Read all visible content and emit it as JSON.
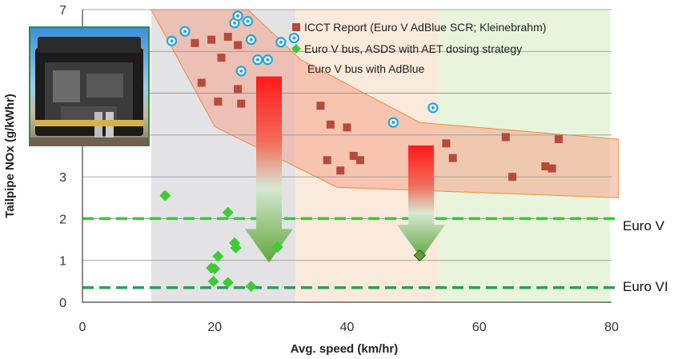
{
  "chart_data": {
    "type": "scatter",
    "xlabel": "Avg. speed (km/hr)",
    "ylabel": "Tailpipe NOx (g/kWhr)",
    "xlim": [
      0,
      80
    ],
    "ylim": [
      0,
      7
    ],
    "x_ticks": [
      "0",
      "20",
      "40",
      "60",
      "80"
    ],
    "y_ticks": [
      "0",
      "1",
      "2",
      "3",
      "",
      "",
      "",
      "7"
    ],
    "grid": "horizontal",
    "legend_position": "top-right",
    "speed_bands": [
      {
        "x0": 10.4,
        "x1": 32.2,
        "color": "#e3e3e6"
      },
      {
        "x0": 32.2,
        "x1": 53.8,
        "color": "#faeadb"
      },
      {
        "x0": 53.8,
        "x1": 79.8,
        "color": "#e8f5dc"
      }
    ],
    "envelope": {
      "color": "#f4a48a",
      "upper": [
        [
          10.4,
          7.0
        ],
        [
          25.0,
          7.0
        ],
        [
          33.0,
          5.8
        ],
        [
          51.0,
          4.3
        ],
        [
          81.0,
          3.9
        ]
      ],
      "lower": [
        [
          81.0,
          2.5
        ],
        [
          38.5,
          2.75
        ],
        [
          20.0,
          4.2
        ]
      ]
    },
    "reference_lines": [
      {
        "label": "Euro V",
        "y": 2.0,
        "color": "#33cc33"
      },
      {
        "label": "Euro VI",
        "y": 0.35,
        "color": "#2e9e5a"
      }
    ],
    "series": [
      {
        "name": "ICCT Report (Euro V AdBlue SCR; Kleinebrahm)",
        "marker": "square",
        "color": "#b84a3c",
        "points": [
          [
            17.0,
            6.2
          ],
          [
            19.5,
            6.28
          ],
          [
            21.0,
            5.85
          ],
          [
            22.0,
            6.35
          ],
          [
            23.5,
            6.15
          ],
          [
            18.0,
            5.25
          ],
          [
            23.5,
            5.1
          ],
          [
            20.5,
            4.8
          ],
          [
            24.0,
            4.75
          ],
          [
            36.0,
            4.7
          ],
          [
            37.5,
            4.25
          ],
          [
            40.0,
            4.18
          ],
          [
            37.0,
            3.4
          ],
          [
            39.0,
            3.15
          ],
          [
            41.0,
            3.5
          ],
          [
            42.0,
            3.4
          ],
          [
            55.0,
            3.8
          ],
          [
            56.0,
            3.45
          ],
          [
            64.0,
            3.95
          ],
          [
            65.0,
            3.0
          ],
          [
            70.0,
            3.25
          ],
          [
            71.0,
            3.2
          ],
          [
            72.0,
            3.9
          ]
        ]
      },
      {
        "name": "Euro V bus, ASDS with AET dosing strategy",
        "marker": "diamond",
        "color": "#3dcc33",
        "points": [
          [
            12.5,
            2.55
          ],
          [
            22.0,
            2.15
          ],
          [
            23.0,
            1.42
          ],
          [
            23.2,
            1.3
          ],
          [
            29.5,
            1.32
          ],
          [
            20.5,
            1.1
          ],
          [
            19.5,
            0.82
          ],
          [
            20.0,
            0.8
          ],
          [
            19.8,
            0.5
          ],
          [
            22.0,
            0.47
          ],
          [
            25.5,
            0.38
          ]
        ]
      },
      {
        "name": "Euro V bus with AdBlue",
        "marker": "circle",
        "color": "#1fa6e0",
        "points": [
          [
            13.5,
            6.25
          ],
          [
            15.5,
            6.48
          ],
          [
            23.0,
            6.68
          ],
          [
            23.5,
            6.85
          ],
          [
            24.0,
            5.53
          ],
          [
            25.0,
            6.72
          ],
          [
            25.5,
            6.28
          ],
          [
            26.5,
            5.8
          ],
          [
            28.0,
            5.8
          ],
          [
            30.0,
            6.22
          ],
          [
            32.0,
            6.32
          ],
          [
            47.0,
            4.3
          ],
          [
            53.0,
            4.65
          ]
        ]
      },
      {
        "name": "",
        "marker": "diamond",
        "color": "#5a9e3c",
        "points": [
          [
            51.0,
            1.12
          ]
        ]
      }
    ],
    "arrows": [
      {
        "x": 28.2,
        "y_top": 5.4,
        "y_bottom": 0.95
      },
      {
        "x": 51.2,
        "y_top": 3.75,
        "y_bottom": 1.05
      }
    ]
  }
}
